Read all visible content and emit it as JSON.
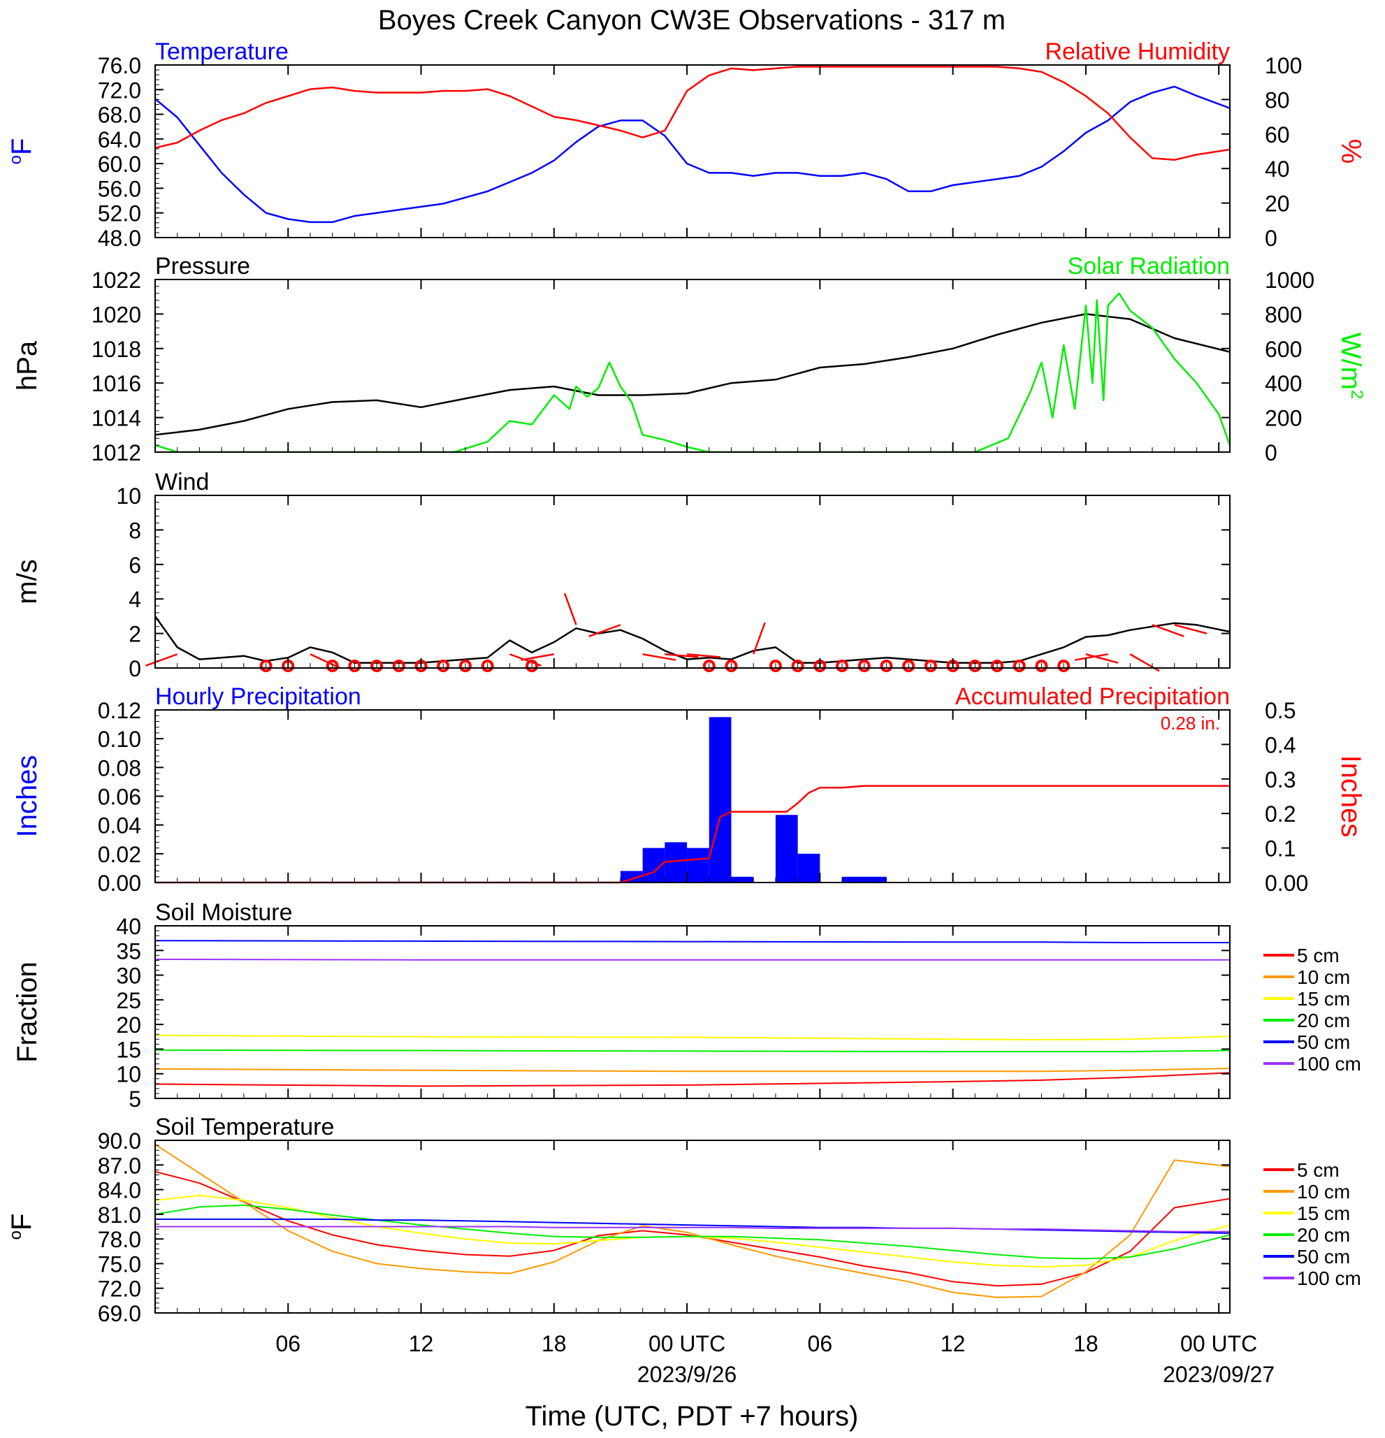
{
  "title": "Boyes Creek Canyon CW3E Observations - 317 m",
  "colors": {
    "blue": "#0000ff",
    "red": "#ff0000",
    "green": "#00ee00",
    "black": "#000000",
    "orange": "#ff9900",
    "yellow": "#ffff00",
    "purple": "#9933ff"
  },
  "x_axis": {
    "label": "Time (UTC, PDT +7 hours)",
    "tick_labels": [
      "06",
      "12",
      "18",
      "00 UTC",
      "06",
      "12",
      "18",
      "00 UTC"
    ],
    "tick_hours": [
      6,
      12,
      18,
      24,
      30,
      36,
      42,
      48
    ],
    "date_labels": [
      "2023/9/26",
      "2023/09/27"
    ],
    "date_hours": [
      24,
      48
    ]
  },
  "chart_data": [
    {
      "type": "line",
      "title_left": "Temperature",
      "title_right": "Relative Humidity",
      "ylabel": "oF",
      "ylabel_right": "%",
      "ylim": [
        48,
        76
      ],
      "ylim_right": [
        0,
        100
      ],
      "yticks": [
        "76.0",
        "72.0",
        "68.0",
        "64.0",
        "60.0",
        "56.0",
        "52.0",
        "48.0"
      ],
      "yticks_right": [
        "100",
        "80",
        "60",
        "40",
        "20",
        "0"
      ],
      "x_hours": [
        0,
        1,
        2,
        3,
        4,
        5,
        6,
        7,
        8,
        9,
        10,
        11,
        12,
        13,
        14,
        15,
        16,
        17,
        18,
        19,
        20,
        21,
        22,
        23,
        24,
        25,
        26,
        27,
        28,
        29,
        30,
        31,
        32,
        33,
        34,
        35,
        36,
        37,
        38,
        39,
        40,
        41,
        42,
        43,
        44,
        45,
        46,
        47,
        48.5
      ],
      "series": [
        {
          "name": "Temperature",
          "axis": "left",
          "color": "blue",
          "values": [
            70.5,
            67.5,
            63.0,
            58.5,
            55.0,
            52.0,
            51.0,
            50.5,
            50.5,
            51.5,
            52.0,
            52.5,
            53.0,
            53.5,
            54.5,
            55.5,
            57.0,
            58.5,
            60.5,
            63.5,
            66.0,
            67.0,
            67.0,
            64.5,
            60.0,
            58.5,
            58.5,
            58.0,
            58.5,
            58.5,
            58.0,
            58.0,
            58.5,
            57.5,
            55.5,
            55.5,
            56.5,
            57.0,
            57.5,
            58.0,
            59.5,
            62.0,
            65.0,
            67.0,
            70.0,
            71.5,
            72.5,
            71.0,
            69.0
          ]
        },
        {
          "name": "Relative Humidity",
          "axis": "right",
          "color": "red",
          "values": [
            52,
            55,
            62,
            68,
            72,
            78,
            82,
            86,
            87,
            85,
            84,
            84,
            84,
            85,
            85,
            86,
            82,
            76,
            70,
            68,
            65,
            62,
            58,
            62,
            85,
            94,
            98,
            97,
            98,
            99,
            99,
            99,
            99,
            99,
            99,
            99,
            99,
            99,
            99,
            98,
            96,
            90,
            82,
            72,
            58,
            46,
            45,
            48,
            51
          ]
        }
      ]
    },
    {
      "type": "line",
      "title_left": "Pressure",
      "title_right": "Solar Radiation",
      "ylabel": "hPa",
      "ylabel_right": "W/m2",
      "ylim": [
        1012,
        1022
      ],
      "ylim_right": [
        0,
        1000
      ],
      "yticks": [
        "1022",
        "1020",
        "1018",
        "1016",
        "1014",
        "1012"
      ],
      "yticks_right": [
        "1000",
        "800",
        "600",
        "400",
        "200",
        "0"
      ],
      "x_hours": [
        0,
        2,
        4,
        6,
        8,
        10,
        12,
        14,
        16,
        18,
        20,
        22,
        24,
        26,
        28,
        30,
        32,
        34,
        36,
        38,
        40,
        42,
        44,
        46,
        48.5
      ],
      "series": [
        {
          "name": "Pressure",
          "axis": "left",
          "color": "black",
          "values": [
            1013.0,
            1013.3,
            1013.8,
            1014.5,
            1014.9,
            1015.0,
            1014.6,
            1015.1,
            1015.6,
            1015.8,
            1015.3,
            1015.3,
            1015.4,
            1016.0,
            1016.2,
            1016.9,
            1017.1,
            1017.5,
            1018.0,
            1018.8,
            1019.5,
            1020.0,
            1019.7,
            1018.6,
            1017.8
          ]
        },
        {
          "name": "Solar Radiation",
          "axis": "right",
          "color": "green",
          "x_hours": [
            0,
            1,
            13.5,
            15,
            16,
            17,
            18,
            18.7,
            19,
            19.5,
            20,
            20.5,
            21,
            21.5,
            22,
            23,
            24,
            25,
            37,
            38.5,
            39.5,
            40,
            40.5,
            41,
            41.5,
            42,
            42.3,
            42.5,
            42.8,
            43,
            43.5,
            44,
            45,
            46,
            47,
            48,
            48.5
          ],
          "values": [
            40,
            0,
            0,
            60,
            180,
            160,
            330,
            250,
            380,
            320,
            370,
            520,
            380,
            290,
            100,
            70,
            30,
            0,
            0,
            80,
            350,
            520,
            200,
            620,
            250,
            850,
            400,
            880,
            300,
            850,
            920,
            820,
            720,
            540,
            400,
            220,
            40
          ]
        }
      ]
    },
    {
      "type": "line",
      "title_left": "Wind",
      "ylabel": "m/s",
      "ylim": [
        0,
        10
      ],
      "yticks": [
        "10",
        "8",
        "6",
        "4",
        "2",
        "0"
      ],
      "x_hours": [
        0,
        1,
        2,
        3,
        4,
        5,
        6,
        7,
        8,
        9,
        10,
        11,
        12,
        13,
        14,
        15,
        16,
        17,
        18,
        19,
        20,
        21,
        22,
        23,
        24,
        25,
        26,
        27,
        28,
        29,
        30,
        31,
        32,
        33,
        34,
        35,
        36,
        37,
        38,
        39,
        40,
        41,
        42,
        43,
        44,
        45,
        46,
        47,
        48.5
      ],
      "series": [
        {
          "name": "Wind speed",
          "color": "black",
          "values": [
            3.0,
            1.2,
            0.5,
            0.6,
            0.7,
            0.4,
            0.6,
            1.2,
            0.9,
            0.3,
            0.3,
            0.3,
            0.3,
            0.4,
            0.5,
            0.6,
            1.6,
            0.9,
            1.5,
            2.3,
            2.0,
            2.2,
            1.7,
            1.0,
            0.5,
            0.6,
            0.5,
            1.0,
            1.2,
            0.3,
            0.3,
            0.4,
            0.5,
            0.6,
            0.5,
            0.4,
            0.3,
            0.3,
            0.3,
            0.4,
            0.8,
            1.2,
            1.8,
            1.9,
            2.2,
            2.4,
            2.6,
            2.5,
            2.1
          ]
        }
      ],
      "calm_hours": [
        5,
        6,
        8,
        9,
        10,
        11,
        12,
        13,
        14,
        15,
        17,
        25,
        26,
        28,
        29,
        30,
        31,
        32,
        33,
        34,
        35,
        36,
        37,
        38,
        39,
        40,
        41
      ],
      "barbs": [
        {
          "hour": 1,
          "dir": 250,
          "speed": 2
        },
        {
          "hour": 7,
          "dir": 115,
          "speed": 2
        },
        {
          "hour": 16,
          "dir": 110,
          "speed": 2
        },
        {
          "hour": 18,
          "dir": 260,
          "speed": 2
        },
        {
          "hour": 19,
          "dir": 340,
          "speed": 3
        },
        {
          "hour": 21,
          "dir": 250,
          "speed": 3
        },
        {
          "hour": 22,
          "dir": 100,
          "speed": 2
        },
        {
          "hour": 23,
          "dir": 95,
          "speed": 2
        },
        {
          "hour": 24,
          "dir": 95,
          "speed": 2
        },
        {
          "hour": 27,
          "dir": 20,
          "speed": 2
        },
        {
          "hour": 42,
          "dir": 105,
          "speed": 2
        },
        {
          "hour": 43,
          "dir": 260,
          "speed": 2
        },
        {
          "hour": 44,
          "dir": 120,
          "speed": 2
        },
        {
          "hour": 45,
          "dir": 110,
          "speed": 3
        },
        {
          "hour": 46,
          "dir": 105,
          "speed": 3
        }
      ]
    },
    {
      "type": "bar",
      "title_left": "Hourly Precipitation",
      "title_right": "Accumulated Precipitation",
      "annotation": "0.28 in.",
      "ylabel": "Inches",
      "ylabel_right": "Inches",
      "ylim": [
        0,
        0.12
      ],
      "ylim_right": [
        0,
        0.5
      ],
      "yticks": [
        "0.12",
        "0.10",
        "0.08",
        "0.06",
        "0.04",
        "0.02",
        "0.00"
      ],
      "yticks_right": [
        "0.5",
        "0.4",
        "0.3",
        "0.2",
        "0.1",
        "0.00"
      ],
      "bars": {
        "hour_start": [
          21,
          22,
          23,
          24,
          25,
          26,
          28,
          29,
          31,
          32
        ],
        "values": [
          0.008,
          0.024,
          0.028,
          0.024,
          0.115,
          0.004,
          0.047,
          0.02,
          0.004,
          0.004
        ]
      },
      "accumulated": {
        "x_hours": [
          0,
          21,
          21.5,
          22.5,
          23,
          24,
          25,
          25.5,
          26,
          27,
          28.5,
          29,
          29.5,
          30,
          31,
          32,
          33,
          48.5
        ],
        "values": [
          0,
          0,
          0.01,
          0.03,
          0.06,
          0.065,
          0.07,
          0.19,
          0.205,
          0.205,
          0.205,
          0.23,
          0.26,
          0.275,
          0.275,
          0.28,
          0.28,
          0.28
        ]
      }
    },
    {
      "type": "line",
      "title_left": "Soil Moisture",
      "ylabel": "Fraction",
      "ylim": [
        5,
        40
      ],
      "yticks": [
        "40",
        "35",
        "30",
        "25",
        "20",
        "15",
        "10",
        "5"
      ],
      "x_hours": [
        0,
        12,
        24,
        36,
        40,
        44,
        48.5
      ],
      "series": [
        {
          "name": "5 cm",
          "color": "red",
          "values": [
            7.9,
            7.5,
            7.7,
            8.4,
            8.7,
            9.3,
            10.2
          ]
        },
        {
          "name": "10 cm",
          "color": "orange",
          "values": [
            11.0,
            10.7,
            10.5,
            10.5,
            10.5,
            10.7,
            11.1
          ]
        },
        {
          "name": "15 cm",
          "color": "yellow",
          "values": [
            17.8,
            17.5,
            17.4,
            17.0,
            16.9,
            17.0,
            17.6
          ]
        },
        {
          "name": "20 cm",
          "color": "green",
          "values": [
            14.8,
            14.7,
            14.6,
            14.5,
            14.5,
            14.5,
            14.7
          ]
        },
        {
          "name": "50 cm",
          "color": "blue",
          "values": [
            37.0,
            36.9,
            36.8,
            36.7,
            36.7,
            36.6,
            36.6
          ]
        },
        {
          "name": "100 cm",
          "color": "purple",
          "values": [
            33.2,
            33.1,
            33.1,
            33.1,
            33.1,
            33.1,
            33.1
          ]
        }
      ]
    },
    {
      "type": "line",
      "title_left": "Soil Temperature",
      "ylabel": "oF",
      "ylim": [
        69,
        90
      ],
      "yticks": [
        "90.0",
        "87.0",
        "84.0",
        "81.0",
        "78.0",
        "75.0",
        "72.0",
        "69.0"
      ],
      "x_hours": [
        0,
        2,
        4,
        6,
        8,
        10,
        12,
        14,
        16,
        18,
        20,
        22,
        24,
        26,
        28,
        30,
        32,
        34,
        36,
        38,
        40,
        42,
        44,
        46,
        48.5
      ],
      "series": [
        {
          "name": "5 cm",
          "color": "red",
          "values": [
            86.2,
            84.8,
            82.5,
            80.2,
            78.5,
            77.3,
            76.6,
            76.1,
            75.9,
            76.6,
            78.4,
            79.0,
            78.5,
            77.6,
            76.7,
            75.8,
            74.7,
            73.9,
            72.8,
            72.3,
            72.5,
            73.9,
            76.5,
            81.8,
            82.9
          ]
        },
        {
          "name": "10 cm",
          "color": "orange",
          "values": [
            89.5,
            86.0,
            82.5,
            79.0,
            76.5,
            75.0,
            74.4,
            74.0,
            73.8,
            75.2,
            77.8,
            79.6,
            78.8,
            77.3,
            75.9,
            74.8,
            73.8,
            72.8,
            71.5,
            70.9,
            71.0,
            74.0,
            78.5,
            87.6,
            86.8
          ]
        },
        {
          "name": "15 cm",
          "color": "yellow",
          "values": [
            82.7,
            83.3,
            82.7,
            81.8,
            80.6,
            79.5,
            78.7,
            78.0,
            77.5,
            77.4,
            77.8,
            78.2,
            78.3,
            78.1,
            77.6,
            77.0,
            76.4,
            75.8,
            75.2,
            74.8,
            74.6,
            74.8,
            75.8,
            77.8,
            79.7
          ]
        },
        {
          "name": "20 cm",
          "color": "green",
          "values": [
            81.0,
            81.9,
            82.1,
            81.6,
            80.9,
            80.3,
            79.7,
            79.2,
            78.7,
            78.3,
            78.2,
            78.2,
            78.3,
            78.3,
            78.1,
            77.9,
            77.5,
            77.1,
            76.6,
            76.1,
            75.7,
            75.6,
            75.8,
            76.8,
            78.5
          ]
        },
        {
          "name": "50 cm",
          "color": "blue",
          "values": [
            80.4,
            80.4,
            80.4,
            80.4,
            80.4,
            80.3,
            80.3,
            80.2,
            80.1,
            80.0,
            79.9,
            79.8,
            79.7,
            79.6,
            79.5,
            79.4,
            79.4,
            79.3,
            79.3,
            79.2,
            79.1,
            79.0,
            78.9,
            78.8,
            78.7
          ]
        },
        {
          "name": "100 cm",
          "color": "purple",
          "values": [
            79.5,
            79.5,
            79.5,
            79.5,
            79.5,
            79.5,
            79.5,
            79.5,
            79.5,
            79.4,
            79.4,
            79.4,
            79.4,
            79.4,
            79.3,
            79.3,
            79.3,
            79.3,
            79.3,
            79.2,
            79.2,
            79.1,
            79.0,
            78.9,
            78.9
          ]
        }
      ]
    }
  ]
}
